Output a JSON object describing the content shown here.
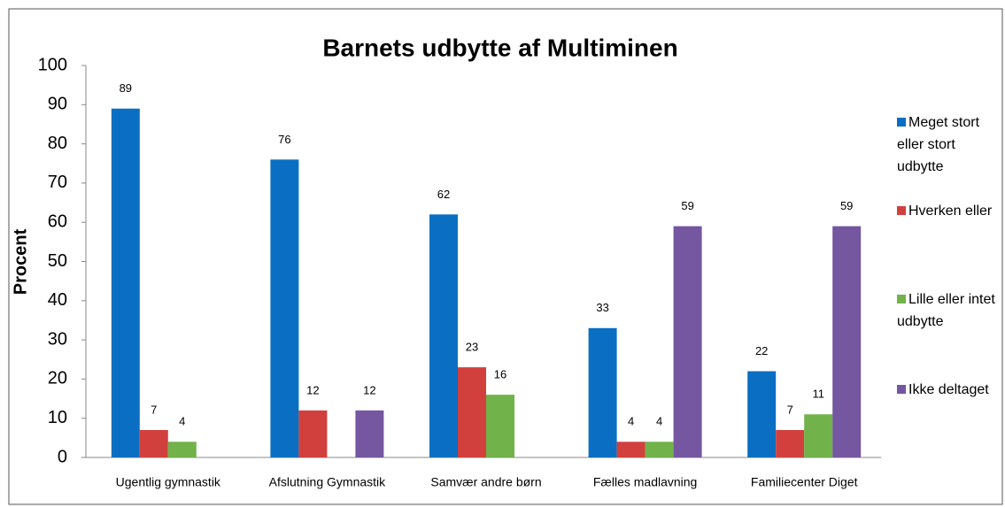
{
  "chart_data": {
    "type": "bar",
    "title": "Barnets udbytte af Multiminen",
    "ylabel": "Procent",
    "categories": [
      "Ugentlig gymnastik",
      "Afslutning Gymnastik",
      "Samvær andre børn",
      "Fælles madlavning",
      "Familiecenter Diget"
    ],
    "series": [
      {
        "name": "Meget stort eller stort udbytte",
        "color": "#0a6fc2",
        "values": [
          89,
          76,
          62,
          33,
          22
        ]
      },
      {
        "name": "Hverken eller",
        "color": "#d2403e",
        "values": [
          7,
          12,
          23,
          4,
          7
        ]
      },
      {
        "name": "Lille eller intet udbytte",
        "color": "#72b24a",
        "values": [
          4,
          null,
          16,
          4,
          11
        ]
      },
      {
        "name": "Ikke deltaget",
        "color": "#7556a0",
        "values": [
          null,
          12,
          null,
          59,
          59
        ]
      }
    ],
    "ylim": [
      0,
      100
    ],
    "yticks": [
      0,
      10,
      20,
      30,
      40,
      50,
      60,
      70,
      80,
      90,
      100
    ],
    "grid": false,
    "legend": "right"
  }
}
